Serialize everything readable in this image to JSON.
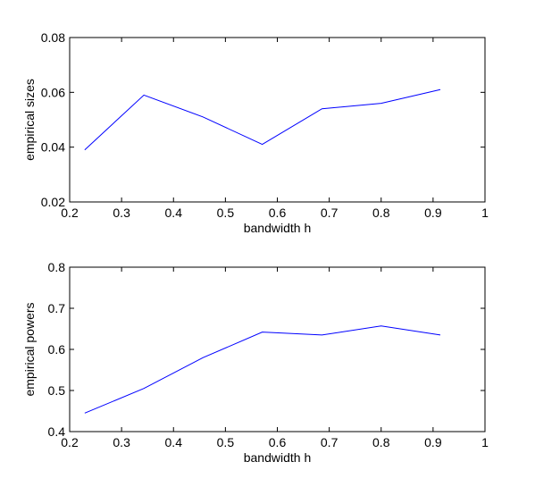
{
  "chart_data": [
    {
      "type": "line",
      "xlabel": "bandwidth h",
      "ylabel": "empirical sizes",
      "x": [
        0.229,
        0.343,
        0.457,
        0.571,
        0.686,
        0.8,
        0.914
      ],
      "values": [
        0.039,
        0.059,
        0.051,
        0.041,
        0.054,
        0.056,
        0.061
      ],
      "color": "#0000ff",
      "xlim": [
        0.2,
        1
      ],
      "xticks": [
        0.2,
        0.3,
        0.4,
        0.5,
        0.6,
        0.7,
        0.8,
        0.9,
        1
      ],
      "ylim": [
        0.02,
        0.08
      ],
      "yticks": [
        0.02,
        0.04,
        0.06,
        0.08
      ]
    },
    {
      "type": "line",
      "xlabel": "bandwidth h",
      "ylabel": "empirical powers",
      "x": [
        0.229,
        0.343,
        0.457,
        0.571,
        0.686,
        0.8,
        0.914
      ],
      "values": [
        0.445,
        0.505,
        0.58,
        0.642,
        0.635,
        0.657,
        0.635
      ],
      "color": "#0000ff",
      "xlim": [
        0.2,
        1
      ],
      "xticks": [
        0.2,
        0.3,
        0.4,
        0.5,
        0.6,
        0.7,
        0.8,
        0.9,
        1
      ],
      "ylim": [
        0.4,
        0.8
      ],
      "yticks": [
        0.4,
        0.5,
        0.6,
        0.7,
        0.8
      ]
    }
  ]
}
